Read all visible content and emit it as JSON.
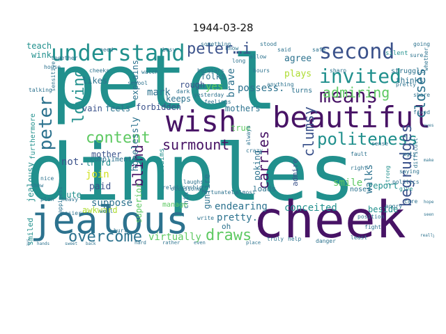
{
  "title": "1944-03-28",
  "palette": {
    "purple": "#471365",
    "indigo": "#3b528b",
    "teal": "#21908d",
    "tealdark": "#2c728e",
    "green": "#5ec962",
    "lime": "#addc30",
    "yellow": "#d0e11c"
  },
  "words": [
    {
      "text": "petel",
      "color": "teal"
    },
    {
      "text": "dimples",
      "color": "teal"
    },
    {
      "text": "cheek",
      "color": "purple"
    },
    {
      "text": "jealous",
      "color": "tealdark"
    },
    {
      "text": "beautiful",
      "color": "purple"
    },
    {
      "text": "wish",
      "color": "purple"
    },
    {
      "text": "understand",
      "color": "teal"
    },
    {
      "text": "second",
      "color": "indigo"
    },
    {
      "text": "invited",
      "color": "teal"
    },
    {
      "text": "means",
      "color": "purple"
    },
    {
      "text": "peter…i",
      "color": "indigo"
    },
    {
      "text": "admiring",
      "color": "green"
    },
    {
      "text": "politeness",
      "color": "teal"
    },
    {
      "text": "overcome",
      "color": "tealdark"
    },
    {
      "text": "surmount",
      "color": "purple"
    },
    {
      "text": "content",
      "color": "green"
    },
    {
      "text": "draws",
      "color": "green"
    },
    {
      "text": "loving",
      "color": "teal"
    },
    {
      "text": "peter",
      "color": "tealdark"
    },
    {
      "text": "begrudges",
      "color": "indigo"
    },
    {
      "text": "closes",
      "color": "tealdark"
    },
    {
      "text": "clumsy",
      "color": "indigo"
    },
    {
      "text": "carries",
      "color": "purple"
    },
    {
      "text": "blind",
      "color": "purple"
    },
    {
      "text": "mark",
      "color": "tealdark"
    },
    {
      "text": "possess.",
      "color": "tealdark"
    },
    {
      "text": "yes",
      "color": "green"
    },
    {
      "text": "brave",
      "color": "tealdark"
    },
    {
      "text": "agree",
      "color": "tealdark"
    },
    {
      "text": "plays",
      "color": "lime"
    },
    {
      "text": "rough",
      "color": "indigo"
    },
    {
      "text": "folks",
      "color": "tealdark"
    },
    {
      "text": "pretty.",
      "color": "tealdark"
    },
    {
      "text": "endearing",
      "color": "tealdark"
    },
    {
      "text": "conceited",
      "color": "teal"
    },
    {
      "text": "smile",
      "color": "green"
    },
    {
      "text": "walks",
      "color": "tealdark"
    },
    {
      "text": "report",
      "color": "teal"
    },
    {
      "text": "beside",
      "color": "teal"
    },
    {
      "text": "suppose",
      "color": "tealdark"
    },
    {
      "text": "virtually",
      "color": "green"
    },
    {
      "text": "join",
      "color": "yellow"
    },
    {
      "text": "paid",
      "color": "indigo"
    },
    {
      "text": "not.",
      "color": "indigo"
    },
    {
      "text": "cute",
      "color": "teal"
    },
    {
      "text": "third",
      "color": "teal"
    },
    {
      "text": "smiled",
      "color": "teal"
    },
    {
      "text": "jealousy",
      "color": "teal"
    },
    {
      "text": "lays",
      "color": "tealdark"
    },
    {
      "text": "teach",
      "color": "teal"
    },
    {
      "text": "wink",
      "color": "teal"
    },
    {
      "text": "explains",
      "color": "tealdark"
    },
    {
      "text": "likes",
      "color": "tealdark"
    },
    {
      "text": "feels",
      "color": "tealdark"
    },
    {
      "text": "vain",
      "color": "indigo"
    },
    {
      "text": "hopelessly",
      "color": "tealdark"
    },
    {
      "text": "forbidden",
      "color": "indigo"
    },
    {
      "text": "keeps",
      "color": "tealdark"
    },
    {
      "text": "mother",
      "color": "indigo"
    },
    {
      "text": "mothers",
      "color": "tealdark"
    },
    {
      "text": "compliment",
      "color": "tealdark"
    },
    {
      "text": "true",
      "color": "green"
    },
    {
      "text": "oh",
      "color": "tealdark"
    },
    {
      "text": "chin",
      "color": "tealdark"
    },
    {
      "text": "gunfire",
      "color": "tealdark"
    },
    {
      "text": "noses",
      "color": "tealdark"
    },
    {
      "text": "loads",
      "color": "tealdark"
    },
    {
      "text": "admire",
      "color": "indigo"
    },
    {
      "text": "poking",
      "color": "tealdark"
    },
    {
      "text": "manage",
      "color": "green"
    },
    {
      "text": "awkward",
      "color": "lime"
    },
    {
      "text": "superior",
      "color": "green"
    },
    {
      "text": "furthermore",
      "color": "teal"
    },
    {
      "text": "thinks",
      "color": "tealdark"
    },
    {
      "text": "turns",
      "color": "tealdark"
    },
    {
      "text": "claims",
      "color": "teal"
    },
    {
      "text": "struggle",
      "color": "tealdark"
    },
    {
      "text": "silent",
      "color": "teal"
    },
    {
      "text": "hours",
      "color": "tealdark"
    },
    {
      "text": "burglars",
      "color": "tealdark"
    },
    {
      "text": "watch",
      "color": "tealdark"
    },
    {
      "text": "politics",
      "color": "tealdark"
    },
    {
      "text": "strong",
      "color": "teal"
    },
    {
      "text": "saying",
      "color": "tealdark"
    },
    {
      "text": "pretty",
      "color": "tealdark"
    },
    {
      "text": "always",
      "color": "tealdark"
    },
    {
      "text": "yesterday",
      "color": "tealdark"
    },
    {
      "text": "give",
      "color": "teal"
    },
    {
      "text": "school",
      "color": "tealdark"
    },
    {
      "text": "cheeks",
      "color": "tealdark"
    },
    {
      "text": "house",
      "color": "tealdark"
    },
    {
      "text": "easier",
      "color": "tealdark"
    },
    {
      "text": "feelings",
      "color": "tealdark"
    },
    {
      "text": "heavy",
      "color": "tealdark"
    },
    {
      "text": "angry",
      "color": "tealdark"
    },
    {
      "text": "really",
      "color": "tealdark"
    },
    {
      "text": "dark",
      "color": "tealdark"
    },
    {
      "text": "write",
      "color": "tealdark"
    },
    {
      "text": "fortunately",
      "color": "tealdark"
    },
    {
      "text": "position",
      "color": "tealdark"
    },
    {
      "text": "relationship",
      "color": "tealdark"
    },
    {
      "text": "laughs",
      "color": "tealdark"
    },
    {
      "text": "well",
      "color": "tealdark"
    },
    {
      "text": "care",
      "color": "tealdark"
    },
    {
      "text": "allow",
      "color": "tealdark"
    },
    {
      "text": "stood",
      "color": "tealdark"
    },
    {
      "text": "together",
      "color": "tealdark"
    },
    {
      "text": "occasional",
      "color": "tealdark"
    },
    {
      "text": "going",
      "color": "tealdark"
    },
    {
      "text": "show",
      "color": "tealdark"
    },
    {
      "text": "sure",
      "color": "tealdark"
    },
    {
      "text": "talking",
      "color": "tealdark"
    },
    {
      "text": "whether",
      "color": "tealdark"
    },
    {
      "text": "hands",
      "color": "tealdark"
    },
    {
      "text": "least",
      "color": "tealdark"
    },
    {
      "text": "anything",
      "color": "tealdark"
    },
    {
      "text": "know",
      "color": "tealdark"
    },
    {
      "text": "long",
      "color": "tealdark"
    },
    {
      "text": "something",
      "color": "tealdark"
    },
    {
      "text": "busy",
      "color": "tealdark"
    },
    {
      "text": "need",
      "color": "tealdark"
    },
    {
      "text": "hurt",
      "color": "tealdark"
    },
    {
      "text": "sweet",
      "color": "tealdark"
    },
    {
      "text": "back",
      "color": "tealdark"
    },
    {
      "text": "fault",
      "color": "tealdark"
    },
    {
      "text": "ugly",
      "color": "tealdark"
    },
    {
      "text": "difficult",
      "color": "tealdark"
    },
    {
      "text": "danger",
      "color": "tealdark"
    },
    {
      "text": "sensitive",
      "color": "tealdark"
    },
    {
      "text": "fight",
      "color": "tealdark"
    },
    {
      "text": "crazy",
      "color": "tealdark"
    },
    {
      "text": "fixed",
      "color": "tealdark"
    },
    {
      "text": "share",
      "color": "tealdark"
    },
    {
      "text": "truly",
      "color": "tealdark"
    },
    {
      "text": "help",
      "color": "tealdark"
    },
    {
      "text": "rather",
      "color": "tealdark"
    },
    {
      "text": "even",
      "color": "tealdark"
    },
    {
      "text": "nice",
      "color": "tealdark"
    },
    {
      "text": "plan",
      "color": "tealdark"
    },
    {
      "text": "happiness",
      "color": "tealdark"
    },
    {
      "text": "hope",
      "color": "tealdark"
    },
    {
      "text": "seen",
      "color": "tealdark"
    },
    {
      "text": "eyes",
      "color": "tealdark"
    },
    {
      "text": "make",
      "color": "tealdark"
    },
    {
      "text": "right",
      "color": "tealdark"
    },
    {
      "text": "sense",
      "color": "tealdark"
    },
    {
      "text": "almost",
      "color": "tealdark"
    },
    {
      "text": "sharp",
      "color": "tealdark"
    },
    {
      "text": "safe",
      "color": "tealdark"
    },
    {
      "text": "said",
      "color": "tealdark"
    },
    {
      "text": "place",
      "color": "tealdark"
    },
    {
      "text": "hard",
      "color": "tealdark"
    }
  ]
}
